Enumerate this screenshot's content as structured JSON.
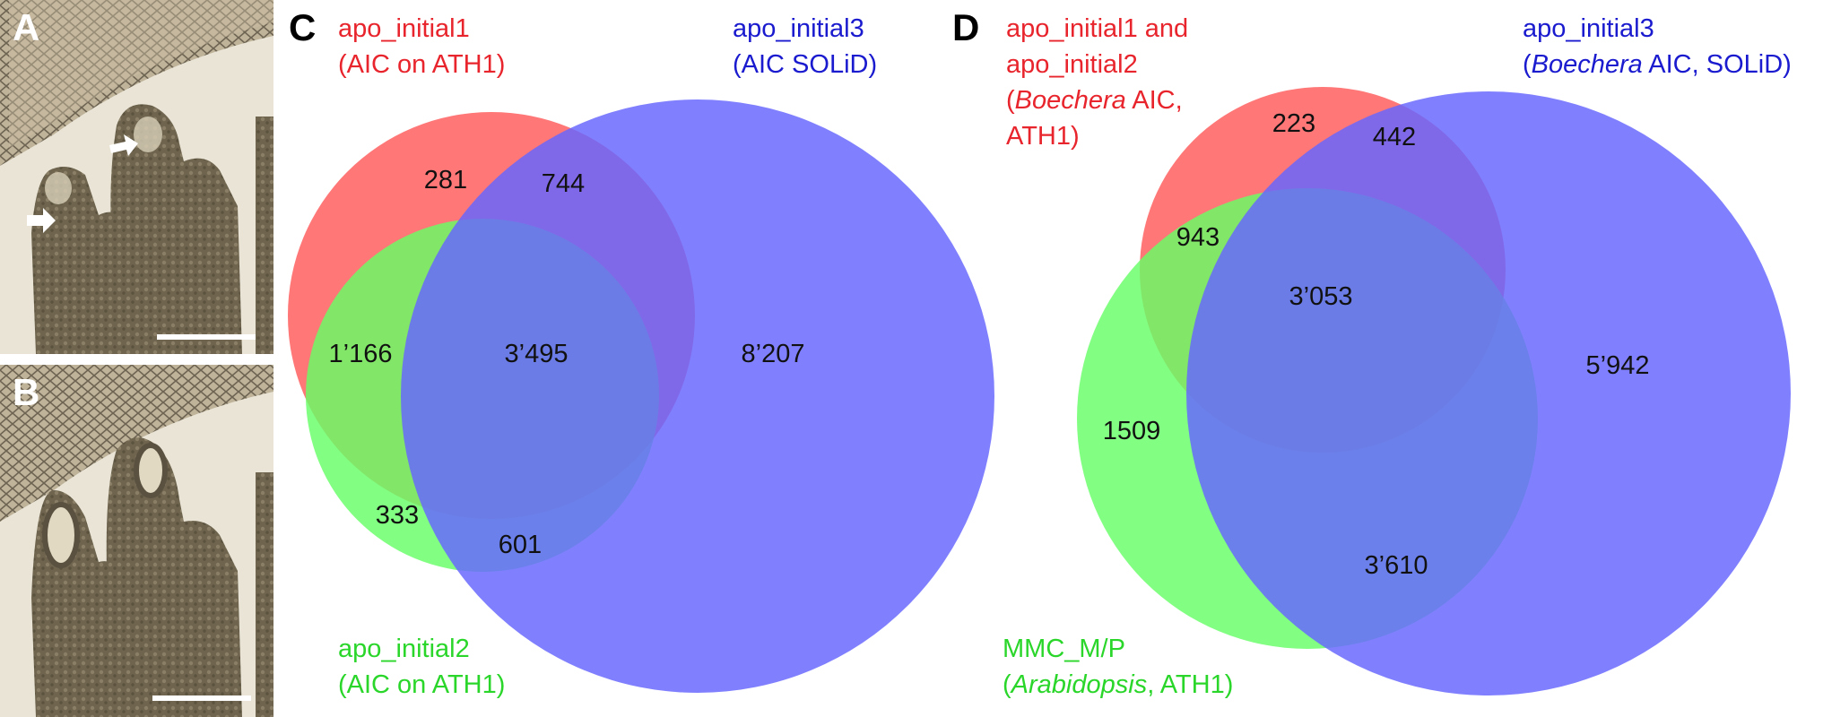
{
  "panels": {
    "a": {
      "letter": "A"
    },
    "b": {
      "letter": "B"
    },
    "c": {
      "letter": "C"
    },
    "d": {
      "letter": "D"
    }
  },
  "colors": {
    "red": "#e8242c",
    "green": "#2bd62b",
    "blue": "#1a1acf",
    "circle_red": "#ff6b6b",
    "circle_green": "#66ff66",
    "circle_blue": "#6666ff"
  },
  "venn_c": {
    "sets": {
      "apo_initial1": {
        "line1": "apo_initial1",
        "line2": "(AIC on ATH1)"
      },
      "apo_initial2": {
        "line1": "apo_initial2",
        "line2": "(AIC on ATH1)"
      },
      "apo_initial3": {
        "line1": "apo_initial3",
        "line2": "(AIC SOLiD)"
      }
    },
    "counts": {
      "only_1": "281",
      "1_and_3": "744",
      "1_and_2": "1’166",
      "all_three": "3’495",
      "only_3": "8’207",
      "only_2": "333",
      "2_and_3": "601"
    }
  },
  "venn_d": {
    "sets": {
      "apo_initial1_2": {
        "line1": "apo_initial1 and",
        "line2": "apo_initial2",
        "line3_italic": "Boechera",
        "line3_rest": " AIC,",
        "line4": "ATH1)"
      },
      "apo_initial3": {
        "line1": "apo_initial3",
        "line2_italic": "Boechera",
        "line2_rest": " AIC, SOLiD)"
      },
      "mmc": {
        "line1": "MMC_M/P",
        "line2_italic": "Arabidopsis",
        "line2_rest": ", ATH1)"
      }
    },
    "counts": {
      "only_12": "223",
      "12_and_3": "442",
      "12_and_mmc": "943",
      "all_three": "3’053",
      "only_mmc": "1509",
      "only_3": "5’942",
      "mmc_and_3": "3’610"
    }
  }
}
